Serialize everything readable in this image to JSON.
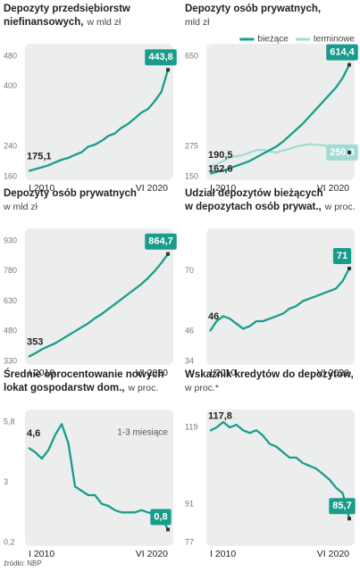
{
  "chart_data": [
    {
      "type": "line",
      "title": [
        "Depozyty przedsiębiorstw",
        "niefinansowych,"
      ],
      "subtitle": "w mld zł",
      "categories": [
        "I 2010",
        null,
        null,
        null,
        null,
        null,
        null,
        null,
        null,
        null,
        null,
        null,
        null,
        null,
        null,
        null,
        null,
        null,
        null,
        null,
        null,
        "VI 2020"
      ],
      "series": [
        {
          "name": null,
          "color": "#1a9c8c",
          "values": [
            175.1,
            180,
            185,
            190,
            198,
            205,
            210,
            218,
            225,
            240,
            245,
            255,
            268,
            275,
            290,
            300,
            315,
            330,
            340,
            360,
            385,
            443.8
          ],
          "value_labels": [
            "175,1",
            null,
            null,
            null,
            null,
            null,
            null,
            null,
            null,
            null,
            null,
            null,
            null,
            null,
            null,
            null,
            null,
            null,
            null,
            null,
            null,
            "443,8"
          ]
        }
      ],
      "ylim": [
        160,
        480
      ],
      "yticks": [
        160,
        240,
        400,
        480
      ]
    },
    {
      "type": "line",
      "title": [
        "Depozyty osób prywatnych,"
      ],
      "subtitle": "mld zł",
      "legend": "top-right",
      "categories": [
        "I 2010",
        null,
        null,
        null,
        null,
        null,
        null,
        null,
        null,
        null,
        null,
        null,
        null,
        null,
        null,
        null,
        null,
        null,
        null,
        null,
        null,
        "VI 2020"
      ],
      "series": [
        {
          "name": "bieżące",
          "color": "#1a9c8c",
          "values": [
            162.6,
            170,
            175,
            185,
            195,
            205,
            215,
            230,
            245,
            260,
            275,
            295,
            320,
            345,
            370,
            400,
            430,
            460,
            490,
            520,
            560,
            614.4
          ],
          "value_labels": [
            "162,6",
            null,
            null,
            null,
            null,
            null,
            null,
            null,
            null,
            null,
            null,
            null,
            null,
            null,
            null,
            null,
            null,
            null,
            null,
            null,
            null,
            "614,4"
          ]
        },
        {
          "name": "terminowe",
          "color": "#a3dbd2",
          "values": [
            190.5,
            200,
            215,
            230,
            235,
            240,
            250,
            260,
            262,
            255,
            250,
            258,
            265,
            275,
            280,
            285,
            282,
            280,
            275,
            270,
            280,
            250.3
          ],
          "value_labels": [
            "190,5",
            null,
            null,
            null,
            null,
            null,
            null,
            null,
            null,
            null,
            null,
            null,
            null,
            null,
            null,
            null,
            null,
            null,
            null,
            null,
            null,
            "250,3"
          ]
        }
      ],
      "ylim": [
        150,
        650
      ],
      "yticks": [
        150,
        275,
        650
      ]
    },
    {
      "type": "line",
      "title": [
        "Depozyty osób prywatnych"
      ],
      "subtitle": "w mld zł",
      "categories": [
        "I 2010",
        null,
        null,
        null,
        null,
        null,
        null,
        null,
        null,
        null,
        null,
        null,
        null,
        null,
        null,
        null,
        null,
        null,
        null,
        null,
        null,
        "VI 2020"
      ],
      "series": [
        {
          "name": null,
          "color": "#1a9c8c",
          "values": [
            353,
            370,
            390,
            405,
            420,
            440,
            460,
            480,
            500,
            520,
            545,
            565,
            590,
            615,
            640,
            665,
            690,
            715,
            745,
            780,
            820,
            864.7
          ],
          "value_labels": [
            null,
            null,
            null,
            null,
            null,
            null,
            null,
            null,
            null,
            null,
            null,
            null,
            null,
            null,
            null,
            null,
            null,
            null,
            null,
            null,
            null,
            "864,7"
          ]
        }
      ],
      "ylim": [
        330,
        930
      ],
      "yticks": [
        330,
        480,
        630,
        780,
        930
      ]
    },
    {
      "type": "line",
      "title": [
        "Udział depozytów bieżących",
        "w depozytach osób prywat.,"
      ],
      "subtitle": "w proc.",
      "categories": [
        "I 2010",
        null,
        null,
        null,
        null,
        null,
        null,
        null,
        null,
        null,
        null,
        null,
        null,
        null,
        null,
        null,
        null,
        null,
        null,
        null,
        null,
        "VI 2020"
      ],
      "series": [
        {
          "name": null,
          "color": "#1a9c8c",
          "values": [
            46,
            50,
            52,
            51,
            49,
            47,
            48,
            50,
            50,
            51,
            52,
            53,
            55,
            56,
            58,
            59,
            60,
            61,
            62,
            63,
            66,
            71
          ]
        }
      ],
      "ylim": [
        34,
        82
      ],
      "yticks": [
        34,
        46,
        70
      ]
    },
    {
      "type": "line",
      "title": [
        "Średnie oprocentowanie nowych",
        "lokat gospodarstw dom.,"
      ],
      "subtitle": "w proc.",
      "annotations": [
        "1-3 miesiące"
      ],
      "categories": [
        "I 2010",
        null,
        null,
        null,
        null,
        null,
        null,
        null,
        null,
        null,
        null,
        null,
        null,
        null,
        null,
        null,
        null,
        null,
        null,
        null,
        null,
        "VI 2020"
      ],
      "series": [
        {
          "name": null,
          "color": "#1a9c8c",
          "values": [
            4.6,
            4.4,
            4.1,
            4.5,
            5.2,
            5.7,
            4.8,
            2.8,
            2.6,
            2.4,
            2.4,
            2.0,
            1.9,
            1.7,
            1.6,
            1.6,
            1.6,
            1.7,
            1.6,
            1.5,
            1.4,
            0.8
          ],
          "value_labels": [
            "4,6",
            null,
            null,
            null,
            null,
            null,
            null,
            null,
            null,
            null,
            null,
            null,
            null,
            null,
            null,
            null,
            null,
            null,
            null,
            null,
            null,
            "0,8"
          ]
        }
      ],
      "ylim": [
        0.2,
        5.8
      ],
      "yticks": [
        {
          "value": 0.2,
          "label": "0,2"
        },
        3,
        {
          "value": 5.8,
          "label": "5,8"
        }
      ]
    },
    {
      "type": "line",
      "title": [
        "Wskaźnik kredytów do depozytów,"
      ],
      "subtitle": "w proc.*",
      "categories": [
        "I 2010",
        null,
        null,
        null,
        null,
        null,
        null,
        null,
        null,
        null,
        null,
        null,
        null,
        null,
        null,
        null,
        null,
        null,
        null,
        null,
        null,
        "VI 2020"
      ],
      "series": [
        {
          "name": null,
          "color": "#1a9c8c",
          "values": [
            117.8,
            119,
            121,
            119,
            120,
            118,
            117,
            118,
            116,
            113,
            112,
            110,
            108,
            108,
            106,
            105,
            104,
            102,
            100,
            97,
            95,
            85.7
          ],
          "value_labels": [
            "117,8",
            null,
            null,
            null,
            null,
            null,
            null,
            null,
            null,
            null,
            null,
            null,
            null,
            null,
            null,
            null,
            null,
            null,
            null,
            null,
            null,
            "85,7"
          ]
        }
      ],
      "ylim": [
        77,
        121
      ],
      "yticks": [
        77,
        91,
        119
      ]
    }
  ],
  "source": "źródło: NBP"
}
